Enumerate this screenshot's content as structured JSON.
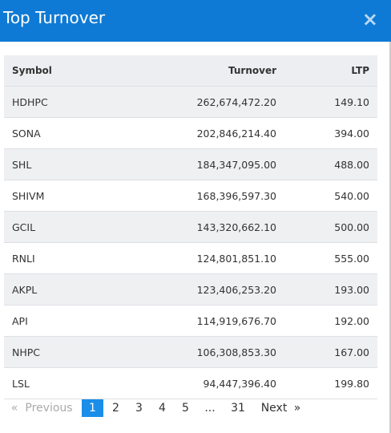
{
  "header": {
    "title": "Top Turnover",
    "close": "×"
  },
  "table": {
    "columns": [
      "Symbol",
      "Turnover",
      "LTP"
    ],
    "rows": [
      [
        "HDHPC",
        "262,674,472.20",
        "149.10"
      ],
      [
        "SONA",
        "202,846,214.40",
        "394.00"
      ],
      [
        "SHL",
        "184,347,095.00",
        "488.00"
      ],
      [
        "SHIVM",
        "168,396,597.30",
        "540.00"
      ],
      [
        "GCIL",
        "143,320,662.10",
        "500.00"
      ],
      [
        "RNLI",
        "124,801,851.10",
        "555.00"
      ],
      [
        "AKPL",
        "123,406,253.20",
        "193.00"
      ],
      [
        "API",
        "114,919,676.70",
        "192.00"
      ],
      [
        "NHPC",
        "106,308,853.30",
        "167.00"
      ],
      [
        "LSL",
        "94,447,396.40",
        "199.80"
      ]
    ]
  },
  "pagination": {
    "first": "«",
    "previous": "Previous",
    "pages": [
      "1",
      "2",
      "3",
      "4",
      "5",
      "...",
      "31"
    ],
    "next": "Next",
    "last": "»",
    "active": 0
  }
}
